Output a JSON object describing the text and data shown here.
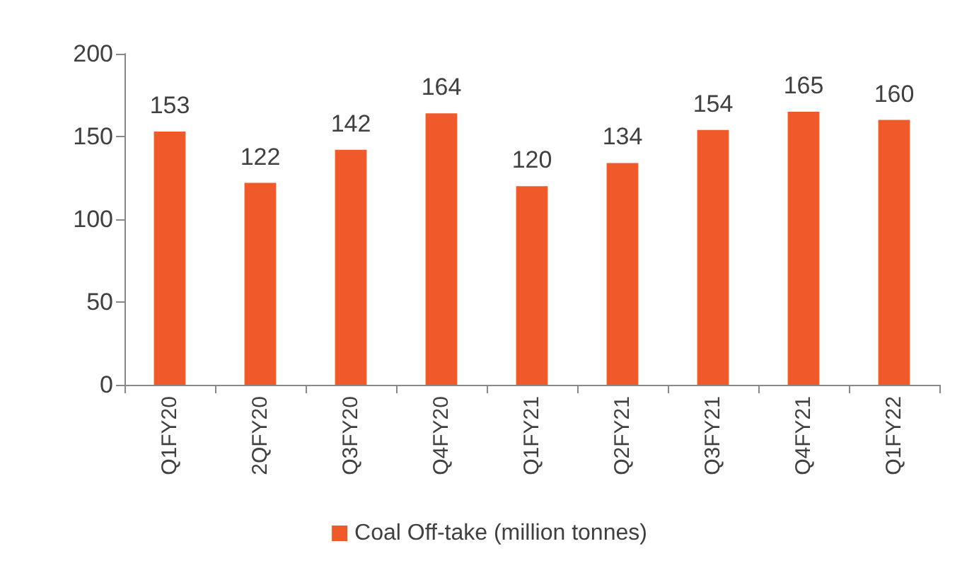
{
  "chart_data": {
    "type": "bar",
    "categories": [
      "Q1FY20",
      "2QFY20",
      "Q3FY20",
      "Q4FY20",
      "Q1FY21",
      "Q2FY21",
      "Q3FY21",
      "Q4FY21",
      "Q1FY22"
    ],
    "series": [
      {
        "name": "Coal Off-take (million tonnes)",
        "color": "#f05a2a",
        "values": [
          153,
          122,
          142,
          164,
          120,
          134,
          154,
          165,
          160
        ]
      }
    ],
    "ylim": [
      0,
      200
    ],
    "yticks": [
      0,
      50,
      100,
      150,
      200
    ],
    "data_labels": true,
    "legend": "bottom",
    "grid": false
  }
}
